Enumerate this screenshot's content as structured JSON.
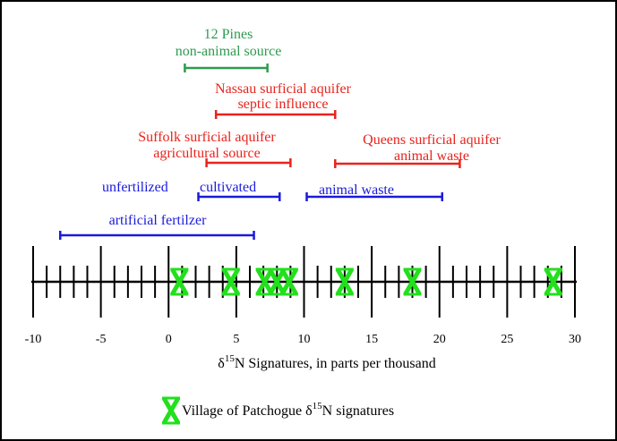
{
  "chart_data": {
    "type": "range",
    "xlabel_prefix": "δ",
    "xlabel_sup": "15",
    "xlabel_suffix": "N Signatures, in parts per thousand",
    "xlim": [
      -10,
      30
    ],
    "major_ticks": [
      -10,
      -5,
      0,
      5,
      10,
      15,
      20,
      25,
      30
    ],
    "minor_step": 1,
    "ranges": [
      {
        "lines": [
          "12 Pines",
          "non-animal source"
        ],
        "start": 1.2,
        "end": 7.3,
        "color": "#2e9b4f"
      },
      {
        "lines": [
          "Nassau surficial aquifer",
          "septic influence"
        ],
        "start": 3.5,
        "end": 12.3,
        "color": "#e8231c"
      },
      {
        "lines": [
          "Suffolk surficial aquifer",
          "agricultural source"
        ],
        "start": 2.8,
        "end": 9.0,
        "color": "#e8231c"
      },
      {
        "lines": [
          "Queens surficial aquifer",
          "animal waste"
        ],
        "start": 12.3,
        "end": 21.5,
        "color": "#e8231c"
      },
      {
        "lines": [
          "unfertilized"
        ],
        "start": null,
        "end": null,
        "color": "#1a1adb"
      },
      {
        "lines": [
          "cultivated"
        ],
        "start": 2.2,
        "end": 8.2,
        "color": "#1a1adb"
      },
      {
        "lines": [
          "animal waste"
        ],
        "start": 10.2,
        "end": 20.2,
        "color": "#1a1adb"
      },
      {
        "lines": [
          "artificial fertilzer"
        ],
        "start": -8.0,
        "end": 6.3,
        "color": "#1a1adb"
      }
    ],
    "points": [
      0.8,
      4.6,
      7.1,
      8.0,
      8.9,
      13.0,
      18.0,
      28.4
    ],
    "point_color": "#22e01c",
    "legend": {
      "prefix": "Village of Patchogue δ",
      "sup": "15",
      "suffix": "N signatures"
    }
  }
}
